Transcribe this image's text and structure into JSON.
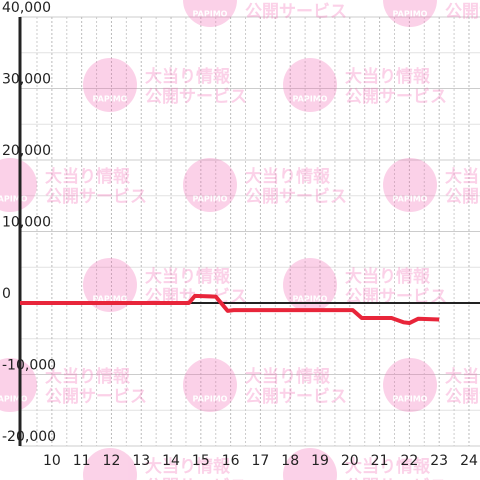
{
  "chart_data": {
    "type": "line",
    "x": [
      8.93,
      14.6,
      14.8,
      15.5,
      15.9,
      16.1,
      20.1,
      20.4,
      21.4,
      21.8,
      22.0,
      22.3,
      23.0
    ],
    "series": [
      {
        "color": "#e8253a",
        "values": [
          0,
          0,
          1000,
          900,
          -1100,
          -1000,
          -1000,
          -2100,
          -2100,
          -2700,
          -2800,
          -2200,
          -2300
        ]
      }
    ],
    "xlim": [
      8.93,
      24.37
    ],
    "xticks": [
      10,
      11,
      12,
      13,
      14,
      15,
      16,
      17,
      18,
      19,
      20,
      21,
      22,
      23,
      24
    ],
    "ylim": [
      -20000,
      40000
    ],
    "yticks": [
      {
        "value": -20000,
        "label": "-20,000"
      },
      {
        "value": -10000,
        "label": "-10,000"
      },
      0,
      {
        "value": 10000,
        "label": "10,000"
      },
      {
        "value": 20000,
        "label": "20,000"
      },
      {
        "value": 30000,
        "label": "30,000"
      },
      {
        "value": 40000,
        "label": "40,000"
      }
    ],
    "grid": true
  },
  "watermark": {
    "logo": "PAPIMO",
    "line1": "大当り情報",
    "line2": "公開サービス"
  }
}
